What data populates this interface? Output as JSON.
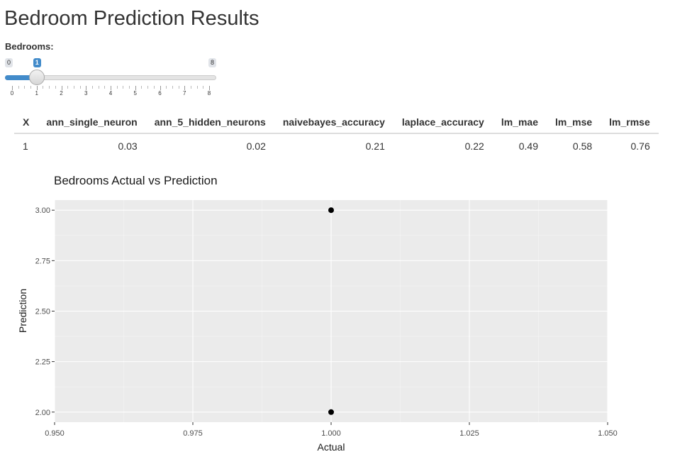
{
  "page": {
    "title": "Bedroom Prediction Results"
  },
  "slider": {
    "label": "Bedrooms:",
    "min_label": "0",
    "max_label": "8",
    "min": 0,
    "max": 8,
    "value": 1,
    "value_label": "1",
    "ticks": [
      "0",
      "1",
      "2",
      "3",
      "4",
      "5",
      "6",
      "7",
      "8"
    ],
    "accent_color": "#428bca"
  },
  "table": {
    "headers": [
      "X",
      "ann_single_neuron",
      "ann_5_hidden_neurons",
      "naivebayes_accuracy",
      "laplace_accuracy",
      "lm_mae",
      "lm_mse",
      "lm_rmse"
    ],
    "rows": [
      [
        "1",
        "0.03",
        "0.02",
        "0.21",
        "0.22",
        "0.49",
        "0.58",
        "0.76"
      ]
    ]
  },
  "chart_data": {
    "type": "scatter",
    "title": "Bedrooms Actual vs Prediction",
    "xlabel": "Actual",
    "ylabel": "Prediction",
    "x": [
      1.0,
      1.0
    ],
    "y": [
      3.0,
      2.0
    ],
    "xlim": [
      0.95,
      1.05
    ],
    "ylim": [
      1.95,
      3.05
    ],
    "x_ticks": [
      "0.950",
      "0.975",
      "1.000",
      "1.025",
      "1.050"
    ],
    "y_ticks": [
      "2.00",
      "2.25",
      "2.50",
      "2.75",
      "3.00"
    ],
    "grid": true,
    "panel_color": "#ebebeb",
    "point_color": "#000000"
  }
}
